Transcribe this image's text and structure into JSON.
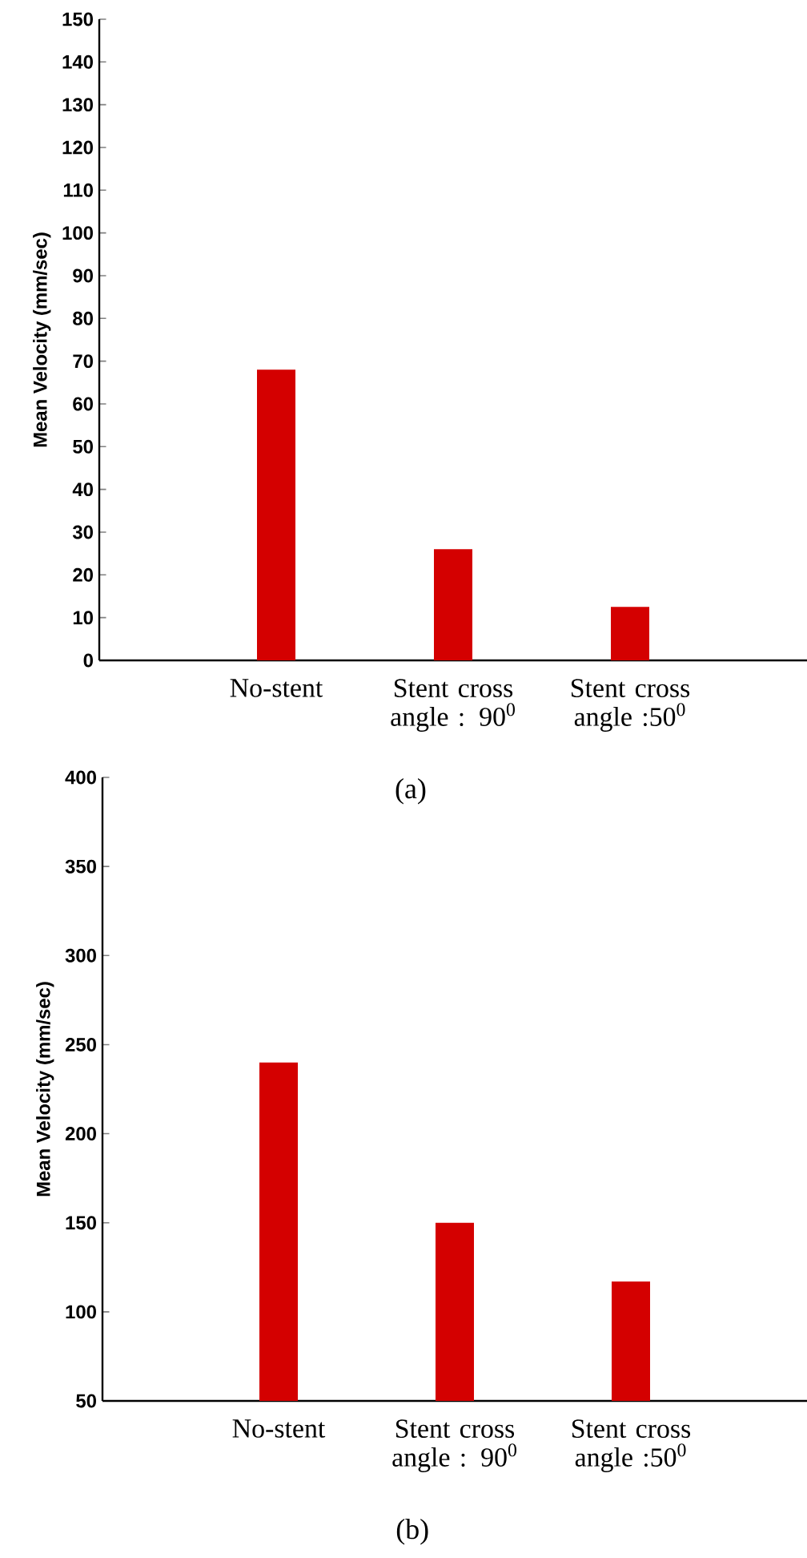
{
  "chart_data": [
    {
      "type": "bar",
      "categories": [
        "No-stent",
        "Stent  cross angle : 90$^{0}$",
        "Stent  cross angle :50$^{0}$"
      ],
      "values": [
        68,
        26,
        12.5
      ],
      "color": "#d40000",
      "ylabel": "Mean Velocity (mm/sec)",
      "ylim": [
        0,
        150
      ],
      "yticks": [
        0,
        10,
        20,
        30,
        40,
        50,
        60,
        70,
        80,
        90,
        100,
        110,
        120,
        130,
        140,
        150
      ],
      "annotations": [
        "(a)"
      ]
    },
    {
      "type": "bar",
      "categories": [
        "No-stent",
        "Stent  cross angle : 90$^{0}$",
        "Stent  cross angle :50$^{0}$"
      ],
      "values": [
        240,
        150,
        117
      ],
      "color": "#d40000",
      "ylabel": "Mean Velocity (mm/sec)",
      "ylim": [
        50,
        400
      ],
      "yticks": [
        50,
        100,
        150,
        200,
        250,
        300,
        350,
        400
      ],
      "annotations": [
        "(b)"
      ]
    }
  ]
}
